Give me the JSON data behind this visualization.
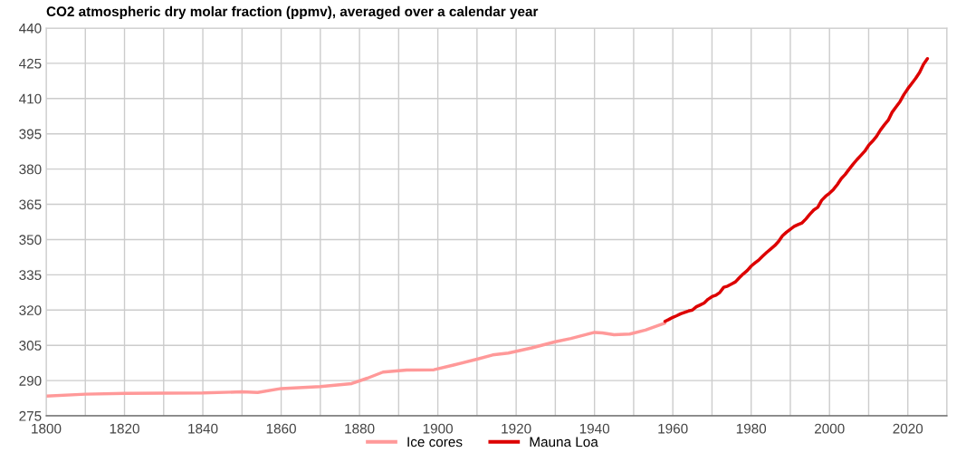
{
  "chart_data": {
    "type": "line",
    "title": "CO2 atmospheric dry molar fraction (ppmv), averaged over a calendar year",
    "xlim": [
      1800,
      2030
    ],
    "xticks": [
      1800,
      {
        "value": 1810,
        "label": null
      },
      1820,
      {
        "value": 1830,
        "label": null
      },
      1840,
      {
        "value": 1850,
        "label": null
      },
      1860,
      {
        "value": 1870,
        "label": null
      },
      1880,
      {
        "value": 1890,
        "label": null
      },
      1900,
      {
        "value": 1910,
        "label": null
      },
      1920,
      {
        "value": 1930,
        "label": null
      },
      1940,
      {
        "value": 1950,
        "label": null
      },
      1960,
      {
        "value": 1970,
        "label": null
      },
      1980,
      {
        "value": 1990,
        "label": null
      },
      2000,
      {
        "value": 2010,
        "label": null
      },
      2020,
      {
        "value": 2030,
        "label": null
      }
    ],
    "ylim": [
      275,
      440
    ],
    "yticks": [
      275,
      290,
      305,
      320,
      335,
      350,
      365,
      380,
      395,
      410,
      425,
      440
    ],
    "grid": true,
    "legend": "bottom",
    "marker": "none",
    "line_style": "solid",
    "series": [
      {
        "name": "Ice cores",
        "color": "#ff9999",
        "x": [
          1800,
          1810,
          1820,
          1830,
          1840,
          1850,
          1854,
          1860,
          1870,
          1878,
          1882,
          1886,
          1892,
          1899,
          1904,
          1910,
          1914,
          1918,
          1924,
          1930,
          1934,
          1940,
          1942,
          1945,
          1949,
          1953,
          1958
        ],
        "values": [
          283.4,
          284.2,
          284.5,
          284.6,
          284.7,
          285.2,
          284.9,
          286.6,
          287.4,
          288.7,
          291,
          293.6,
          294.5,
          294.6,
          296.6,
          299.1,
          300.9,
          301.7,
          303.9,
          306.5,
          307.9,
          310.5,
          310.3,
          309.5,
          309.8,
          311.5,
          314.5
        ]
      },
      {
        "name": "Mauna Loa",
        "color": "#dd0000",
        "x": [
          1958,
          1959,
          1960,
          1961,
          1962,
          1963,
          1964,
          1965,
          1966,
          1967,
          1968,
          1969,
          1970,
          1971,
          1972,
          1973,
          1974,
          1975,
          1976,
          1977,
          1978,
          1979,
          1980,
          1981,
          1982,
          1983,
          1984,
          1985,
          1986,
          1987,
          1988,
          1989,
          1990,
          1991,
          1992,
          1993,
          1994,
          1995,
          1996,
          1997,
          1998,
          1999,
          2000,
          2001,
          2002,
          2003,
          2004,
          2005,
          2006,
          2007,
          2008,
          2009,
          2010,
          2011,
          2012,
          2013,
          2014,
          2015,
          2016,
          2017,
          2018,
          2019,
          2020,
          2021,
          2022,
          2023,
          2024,
          2025
        ],
        "values": [
          315.2,
          316,
          316.9,
          317.6,
          318.4,
          319,
          319.6,
          320,
          321.4,
          322.2,
          323,
          324.6,
          325.7,
          326.3,
          327.5,
          329.7,
          330.2,
          331.1,
          332,
          333.8,
          335.4,
          336.8,
          338.7,
          340.1,
          341.4,
          343,
          344.6,
          346,
          347.4,
          349.2,
          351.6,
          353.1,
          354.4,
          355.6,
          356.4,
          357.1,
          358.8,
          360.8,
          362.6,
          363.7,
          366.7,
          368.4,
          369.7,
          371.3,
          373.4,
          375.9,
          377.7,
          379.9,
          382,
          384,
          385.8,
          387.6,
          390.1,
          391.9,
          393.9,
          396.6,
          398.8,
          400.8,
          404.2,
          406.5,
          408.7,
          411.7,
          414.2,
          416.4,
          418.6,
          421.1,
          424.6,
          427
        ]
      }
    ]
  }
}
